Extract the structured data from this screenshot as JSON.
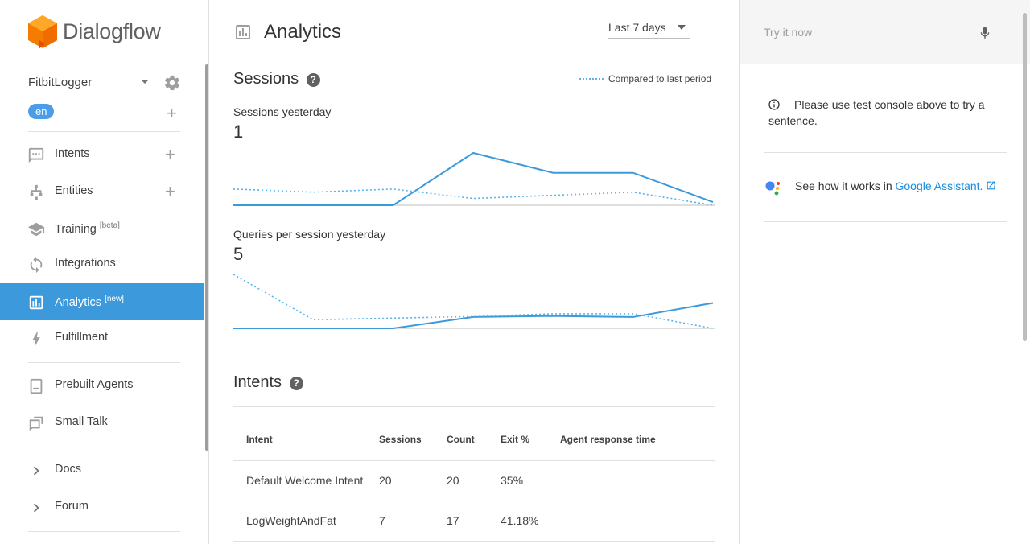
{
  "app": {
    "name": "Dialogflow"
  },
  "agent": {
    "name": "FitbitLogger",
    "language": "en"
  },
  "nav": {
    "intents": "Intents",
    "entities": "Entities",
    "training": "Training",
    "training_tag": "[beta]",
    "integrations": "Integrations",
    "analytics": "Analytics",
    "analytics_tag": "[new]",
    "fulfillment": "Fulfillment",
    "prebuilt_agents": "Prebuilt Agents",
    "small_talk": "Small Talk",
    "docs": "Docs",
    "forum": "Forum"
  },
  "header": {
    "title": "Analytics",
    "range": "Last 7 days"
  },
  "sessions": {
    "title": "Sessions",
    "legend": "Compared to last period",
    "yesterday_label": "Sessions yesterday",
    "yesterday_value": "1",
    "queries_label": "Queries per session yesterday",
    "queries_value": "5"
  },
  "intents": {
    "title": "Intents",
    "columns": [
      "Intent",
      "Sessions",
      "Count",
      "Exit %",
      "Agent response time"
    ],
    "rows": [
      [
        "Default Welcome Intent",
        "20",
        "20",
        "35%",
        ""
      ],
      [
        "LogWeightAndFat",
        "7",
        "17",
        "41.18%",
        ""
      ]
    ]
  },
  "right": {
    "try_placeholder": "Try it now",
    "info": "Please use test console above to try a sentence.",
    "ga_prefix": "See how it works in ",
    "ga_link": "Google Assistant."
  },
  "colors": {
    "accent": "#3b99dc",
    "brand_orange": "#f57c00"
  },
  "chart_data": [
    {
      "type": "line",
      "title": "Sessions yesterday",
      "x": [
        1,
        2,
        3,
        4,
        5,
        6,
        7
      ],
      "series": [
        {
          "values": [
            0,
            0,
            0,
            1,
            0.62,
            0.62,
            0.06
          ]
        },
        {
          "name": "Compared to last period",
          "values": [
            0.31,
            0.25,
            0.31,
            0.13,
            0.19,
            0.25,
            0
          ]
        }
      ],
      "ylim": [
        0,
        1
      ]
    },
    {
      "type": "line",
      "title": "Queries per session yesterday",
      "x": [
        1,
        2,
        3,
        4,
        5,
        6,
        7
      ],
      "series": [
        {
          "values": [
            0,
            0,
            0,
            0.21,
            0.23,
            0.21,
            0.47
          ]
        },
        {
          "name": "Compared to last period",
          "values": [
            1,
            0.16,
            0.19,
            0.22,
            0.27,
            0.27,
            0
          ]
        }
      ],
      "ylim": [
        0,
        1
      ]
    }
  ]
}
